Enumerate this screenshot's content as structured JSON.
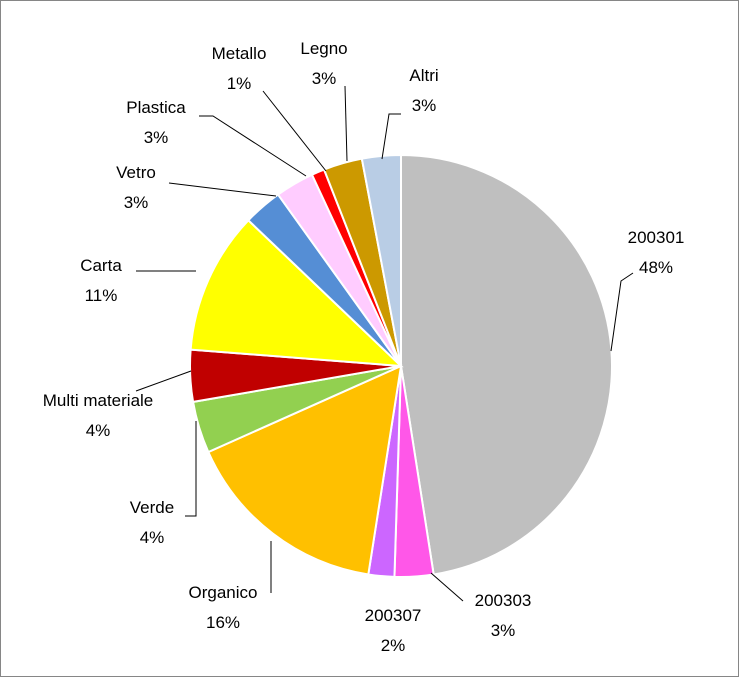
{
  "chart_data": {
    "type": "pie",
    "categories": [
      "200301",
      "200303",
      "200307",
      "Organico",
      "Verde",
      "Multi materiale",
      "Carta",
      "Vetro",
      "Plastica",
      "Metallo",
      "Legno",
      "Altri"
    ],
    "values": [
      48,
      3,
      2,
      16,
      4,
      4,
      11,
      3,
      3,
      1,
      3,
      3
    ],
    "value_labels": [
      "48%",
      "3%",
      "2%",
      "16%",
      "4%",
      "4%",
      "11%",
      "3%",
      "3%",
      "1%",
      "3%",
      "3%"
    ],
    "colors": [
      "#bfbfbf",
      "#ff57e8",
      "#cc66ff",
      "#ffc000",
      "#92d050",
      "#c00000",
      "#ffff00",
      "#558ed5",
      "#ffccff",
      "#ff0000",
      "#cc9900",
      "#b9cde5"
    ]
  }
}
